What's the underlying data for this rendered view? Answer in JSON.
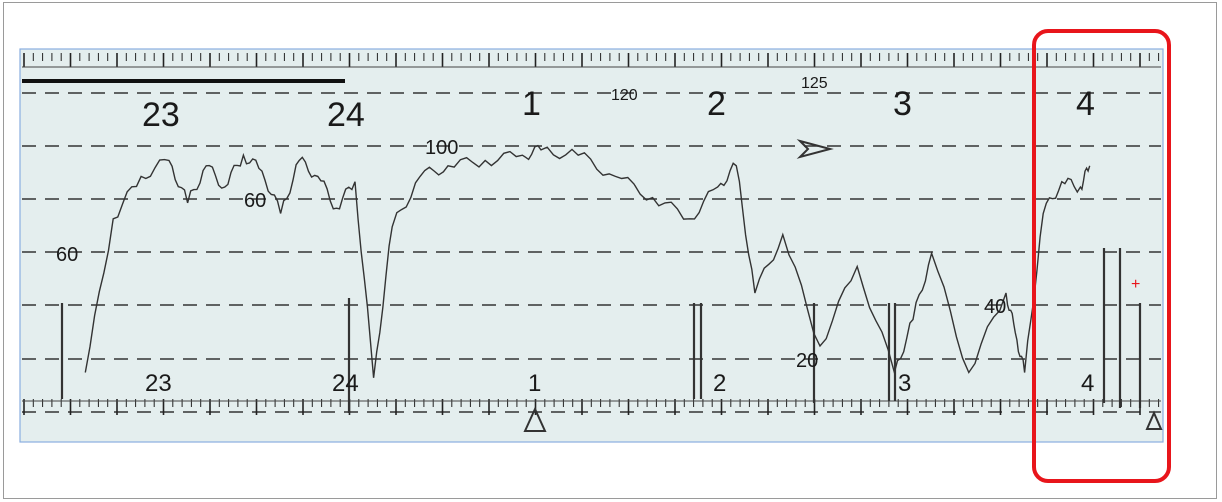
{
  "chart_data": {
    "type": "line",
    "title": "",
    "xlabel": "",
    "ylabel": "",
    "x_tick_labels_top": [
      "23",
      "24",
      "1",
      "2",
      "3",
      "4"
    ],
    "x_tick_labels_bottom": [
      "23",
      "24",
      "1",
      "2",
      "3",
      "4"
    ],
    "annotations": [
      "120",
      "125",
      "100",
      "60",
      "60",
      "40",
      "20"
    ],
    "grid": "dashed-horizontal",
    "highlight": {
      "label": "4",
      "color": "#e8151b"
    },
    "series": [
      {
        "x": [
          22.55,
          22.7,
          22.85,
          23.0,
          23.1,
          23.2,
          23.3,
          23.4,
          23.5,
          23.6,
          23.7,
          23.8,
          23.9,
          24.0,
          24.1,
          24.2,
          24.35,
          24.5,
          24.7,
          24.9,
          25.0,
          25.2,
          25.4,
          25.6,
          25.8,
          25.95,
          26.05,
          26.15,
          26.3,
          26.5,
          26.7,
          26.9,
          27.0,
          27.1,
          27.3,
          27.5,
          27.55,
          27.6,
          27.7,
          27.8,
          27.9,
          27.95
        ],
        "y": [
          10,
          68,
          84,
          90,
          74,
          88,
          80,
          92,
          86,
          70,
          90,
          84,
          72,
          82,
          8,
          65,
          84,
          88,
          90,
          92,
          94,
          92,
          84,
          76,
          68,
          80,
          88,
          40,
          62,
          20,
          50,
          10,
          30,
          55,
          10,
          40,
          25,
          10,
          70,
          82,
          80,
          88
        ]
      }
    ]
  }
}
